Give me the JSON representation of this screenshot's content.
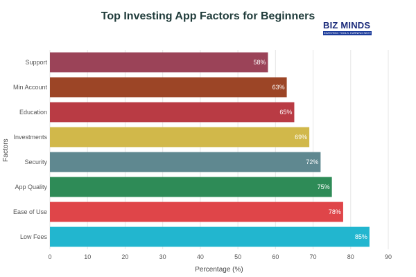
{
  "logo": {
    "text": "BIZ MINDS",
    "tagline": "INVESTING TOOLS. EARNING NEXT"
  },
  "chart_data": {
    "type": "bar",
    "orientation": "horizontal",
    "title": "Top Investing App Factors for Beginners",
    "xlabel": "Percentage (%)",
    "ylabel": "Factors",
    "xlim": [
      0,
      90
    ],
    "x_ticks": [
      "0",
      "10",
      "20",
      "30",
      "40",
      "50",
      "60",
      "70",
      "80",
      "90"
    ],
    "grid": true,
    "legend": "none",
    "categories": [
      "Support",
      "Min Account",
      "Education",
      "Investments",
      "Security",
      "App Quality",
      "Ease of Use",
      "Low Fees"
    ],
    "values": [
      58,
      63,
      65,
      69,
      72,
      75,
      78,
      85
    ],
    "value_labels": [
      "58%",
      "63%",
      "65%",
      "69%",
      "72%",
      "75%",
      "78%",
      "85%"
    ],
    "colors": [
      "#9b4358",
      "#9c4526",
      "#b93b44",
      "#d1b84a",
      "#5f8890",
      "#2e8b57",
      "#df4549",
      "#22b6cf"
    ]
  }
}
